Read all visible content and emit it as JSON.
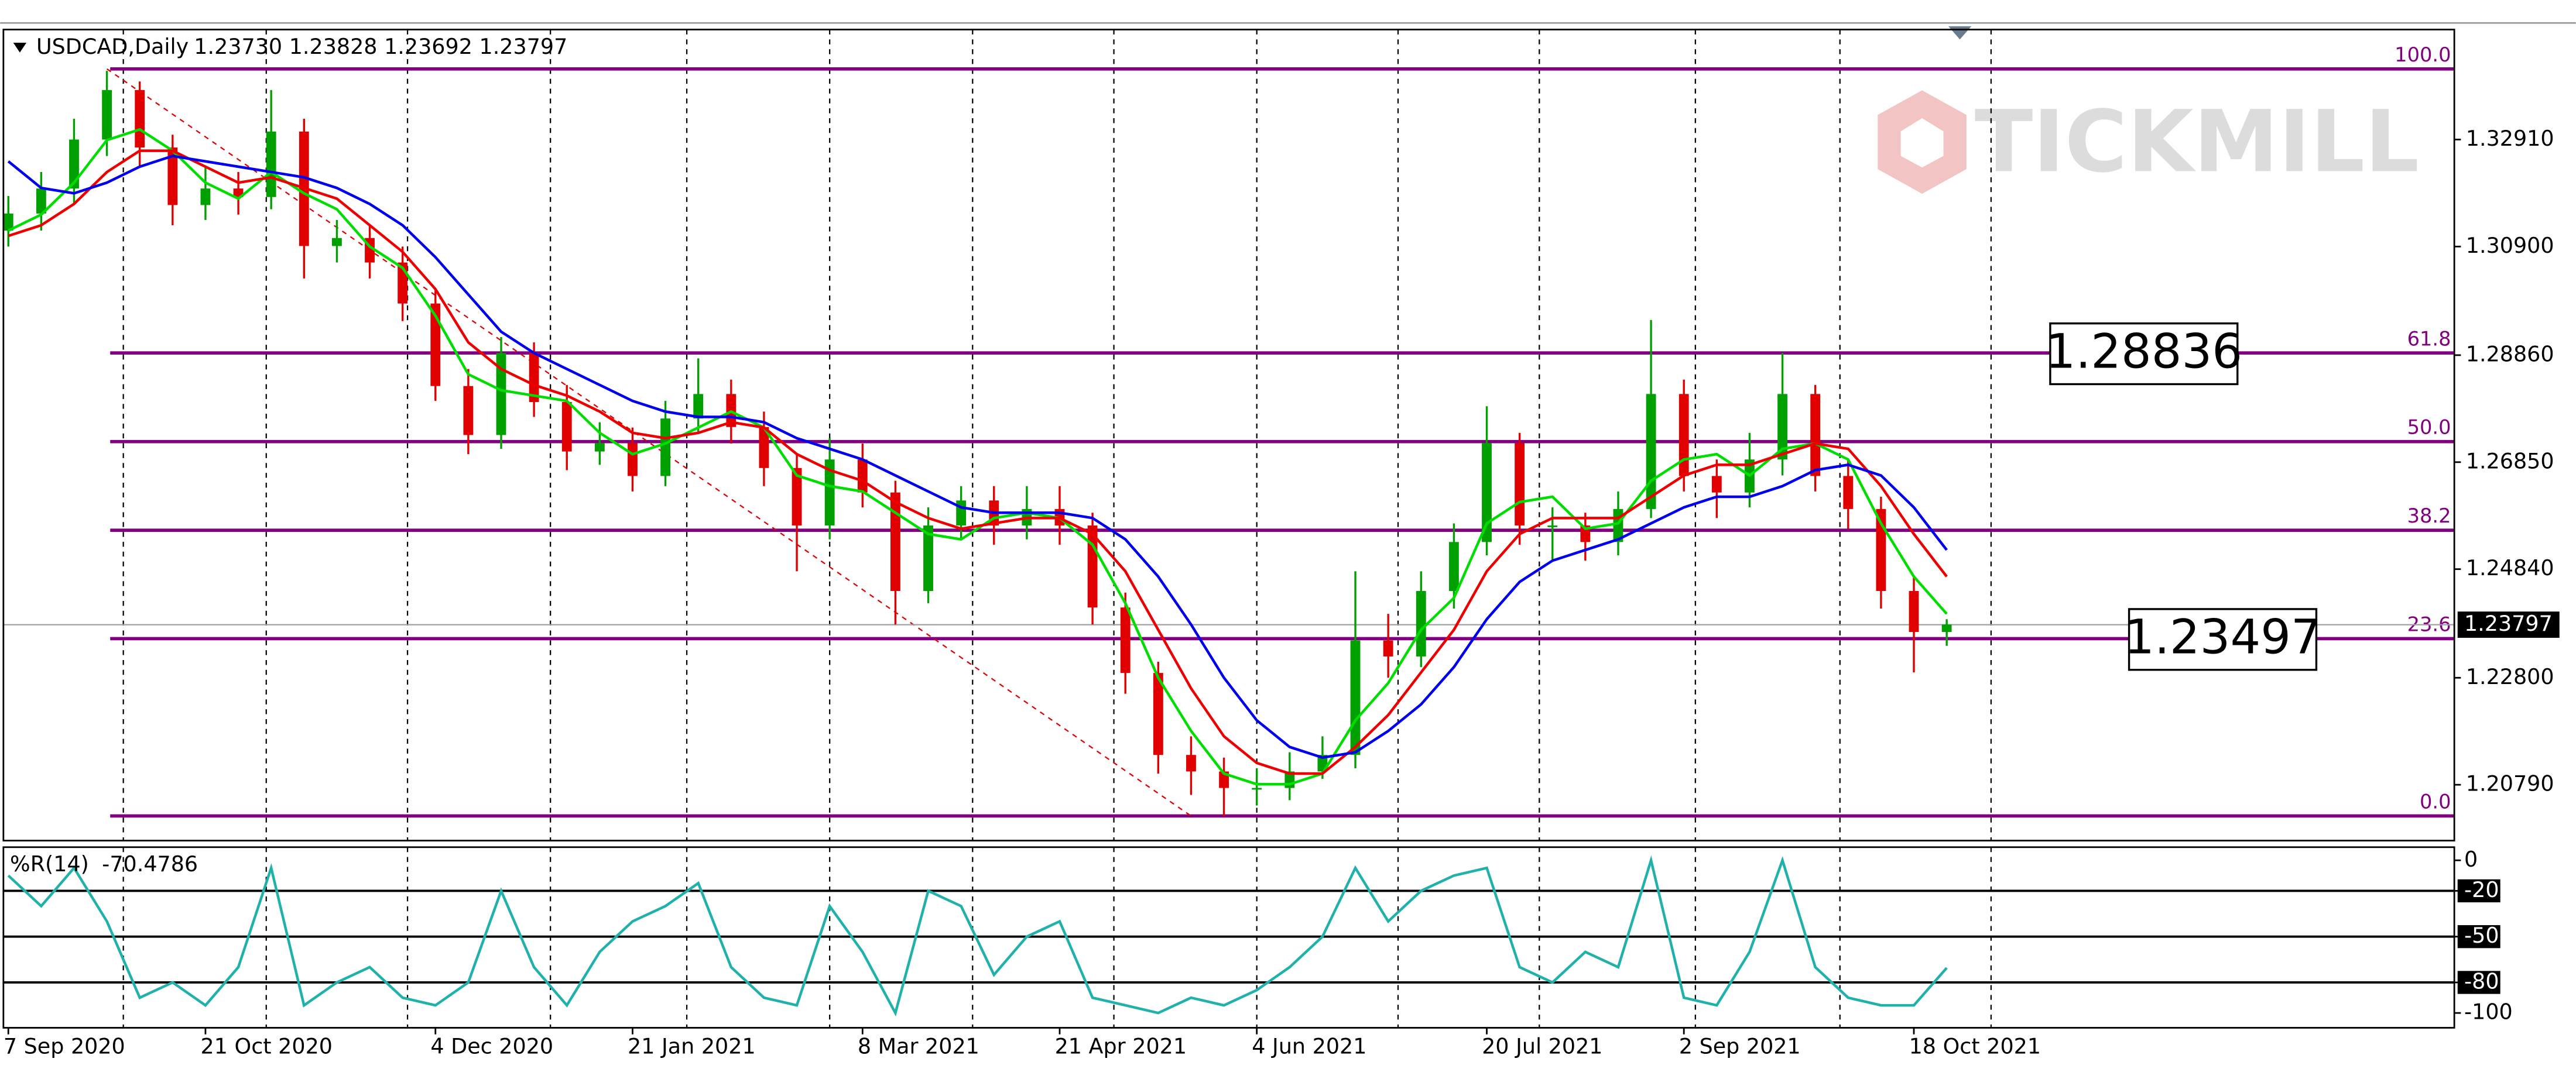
{
  "chart_data": [
    {
      "type": "candlestick",
      "title": "USDCAD,Daily",
      "subtitle": "1.23730 1.23828 1.23692 1.23797",
      "categories": [
        "7 Sep 2020",
        null,
        null,
        null,
        null,
        null,
        "21 Oct 2020",
        null,
        null,
        null,
        null,
        null,
        null,
        "4 Dec 2020",
        null,
        null,
        null,
        null,
        null,
        "21 Jan 2021",
        null,
        null,
        null,
        null,
        null,
        null,
        "8 Mar 2021",
        null,
        null,
        null,
        null,
        null,
        "21 Apr 2021",
        null,
        null,
        null,
        null,
        null,
        "4 Jun 2021",
        null,
        null,
        null,
        null,
        null,
        null,
        "20 Jul 2021",
        null,
        null,
        null,
        null,
        null,
        "2 Sep 2021",
        null,
        null,
        null,
        null,
        null,
        null,
        "18 Oct 2021",
        null
      ],
      "open": [
        1.312,
        1.3152,
        1.3199,
        1.3291,
        1.3384,
        1.3276,
        1.3168,
        1.3199,
        1.3183,
        1.3306,
        1.3091,
        1.3106,
        1.306,
        1.2983,
        1.2828,
        1.2736,
        1.289,
        1.2798,
        1.2705,
        1.2721,
        1.2659,
        1.2767,
        1.2813,
        1.2751,
        1.2674,
        1.2566,
        1.269,
        1.2628,
        1.2443,
        1.2566,
        1.2613,
        1.2566,
        1.2597,
        1.2566,
        1.2412,
        1.2289,
        1.2135,
        1.2104,
        1.2073,
        1.2073,
        1.2104,
        1.2135,
        1.235,
        1.232,
        1.2443,
        1.2535,
        1.2721,
        1.2566,
        1.2566,
        1.2535,
        1.2597,
        1.2813,
        1.2659,
        1.2628,
        1.269,
        1.2813,
        1.2659,
        1.2597,
        1.2443,
        1.2366
      ],
      "high": [
        1.3185,
        1.323,
        1.333,
        1.342,
        1.34,
        1.33,
        1.324,
        1.323,
        1.3384,
        1.333,
        1.314,
        1.313,
        1.309,
        1.301,
        1.286,
        1.292,
        1.291,
        1.283,
        1.276,
        1.275,
        1.28,
        1.288,
        1.284,
        1.278,
        1.27,
        1.273,
        1.272,
        1.265,
        1.26,
        1.264,
        1.264,
        1.264,
        1.264,
        1.259,
        1.244,
        1.231,
        1.217,
        1.213,
        1.211,
        1.214,
        1.217,
        1.248,
        1.24,
        1.248,
        1.257,
        1.279,
        1.274,
        1.26,
        1.259,
        1.263,
        1.2952,
        1.284,
        1.269,
        1.274,
        1.289,
        1.283,
        1.269,
        1.262,
        1.247,
        1.239
      ],
      "low": [
        1.309,
        1.312,
        1.317,
        1.326,
        1.324,
        1.313,
        1.314,
        1.315,
        1.316,
        1.303,
        1.306,
        1.303,
        1.295,
        1.28,
        1.27,
        1.271,
        1.277,
        1.267,
        1.268,
        1.263,
        1.264,
        1.274,
        1.272,
        1.264,
        1.248,
        1.254,
        1.26,
        1.238,
        1.242,
        1.254,
        1.253,
        1.254,
        1.253,
        1.238,
        1.225,
        1.21,
        1.206,
        1.202,
        1.204,
        1.205,
        1.209,
        1.211,
        1.228,
        1.23,
        1.241,
        1.251,
        1.253,
        1.25,
        1.25,
        1.251,
        1.258,
        1.263,
        1.258,
        1.26,
        1.266,
        1.263,
        1.256,
        1.241,
        1.229,
        1.234
      ],
      "close": [
        1.3152,
        1.3199,
        1.3291,
        1.3384,
        1.3276,
        1.3168,
        1.3199,
        1.3183,
        1.3306,
        1.3091,
        1.3106,
        1.306,
        1.2983,
        1.2828,
        1.2736,
        1.289,
        1.2798,
        1.2705,
        1.2721,
        1.2659,
        1.2767,
        1.2813,
        1.2751,
        1.2674,
        1.2566,
        1.269,
        1.2628,
        1.2443,
        1.2566,
        1.2613,
        1.2566,
        1.2597,
        1.2566,
        1.2412,
        1.2289,
        1.2135,
        1.2104,
        1.2073,
        1.2073,
        1.2104,
        1.2135,
        1.235,
        1.232,
        1.2443,
        1.2535,
        1.2721,
        1.2566,
        1.2566,
        1.2535,
        1.2597,
        1.2813,
        1.2659,
        1.2628,
        1.269,
        1.2813,
        1.2659,
        1.2597,
        1.2443,
        1.2366,
        1.238
      ],
      "up_color": "#00a000",
      "down_color": "#e00000",
      "lines": [
        {
          "color": "#00dd00",
          "values": [
            1.312,
            1.315,
            1.321,
            1.329,
            1.331,
            1.327,
            1.321,
            1.318,
            1.323,
            1.319,
            1.316,
            1.309,
            1.305,
            1.296,
            1.285,
            1.282,
            1.281,
            1.28,
            1.274,
            1.27,
            1.272,
            1.275,
            1.278,
            1.275,
            1.266,
            1.264,
            1.263,
            1.259,
            1.255,
            1.254,
            1.258,
            1.259,
            1.258,
            1.253,
            1.242,
            1.228,
            1.218,
            1.21,
            1.208,
            1.208,
            1.21,
            1.22,
            1.227,
            1.237,
            1.243,
            1.257,
            1.261,
            1.262,
            1.256,
            1.257,
            1.265,
            1.269,
            1.27,
            1.266,
            1.271,
            1.272,
            1.269,
            1.257,
            1.247,
            1.24
          ]
        },
        {
          "color": "#ee0000",
          "values": [
            1.311,
            1.313,
            1.317,
            1.323,
            1.327,
            1.327,
            1.324,
            1.321,
            1.322,
            1.32,
            1.318,
            1.313,
            1.308,
            1.301,
            1.291,
            1.286,
            1.283,
            1.281,
            1.278,
            1.274,
            1.273,
            1.274,
            1.276,
            1.275,
            1.27,
            1.267,
            1.265,
            1.261,
            1.258,
            1.256,
            1.257,
            1.258,
            1.258,
            1.255,
            1.248,
            1.237,
            1.226,
            1.217,
            1.212,
            1.21,
            1.21,
            1.215,
            1.221,
            1.229,
            1.237,
            1.248,
            1.255,
            1.258,
            1.258,
            1.258,
            1.262,
            1.266,
            1.268,
            1.268,
            1.27,
            1.272,
            1.271,
            1.264,
            1.255,
            1.247
          ]
        },
        {
          "color": "#0000ee",
          "values": [
            1.325,
            1.32,
            1.319,
            1.321,
            1.324,
            1.326,
            1.325,
            1.324,
            1.323,
            1.322,
            1.32,
            1.317,
            1.313,
            1.307,
            1.3,
            1.293,
            1.289,
            1.286,
            1.283,
            1.28,
            1.278,
            1.277,
            1.277,
            1.276,
            1.273,
            1.271,
            1.269,
            1.266,
            1.263,
            1.26,
            1.259,
            1.259,
            1.259,
            1.258,
            1.254,
            1.247,
            1.238,
            1.228,
            1.22,
            1.215,
            1.213,
            1.214,
            1.218,
            1.223,
            1.23,
            1.239,
            1.246,
            1.25,
            1.252,
            1.254,
            1.257,
            1.26,
            1.262,
            1.262,
            1.264,
            1.267,
            1.268,
            1.266,
            1.26,
            1.252
          ]
        }
      ],
      "ylim": [
        1.19741,
        1.34976
      ],
      "yticks": [
        {
          "value": 1.3291,
          "label": "1.32910"
        },
        {
          "value": 1.309,
          "label": "1.30900"
        },
        {
          "value": 1.2886,
          "label": "1.28860"
        },
        {
          "value": 1.2685,
          "label": "1.26850"
        },
        {
          "value": 1.2484,
          "label": "1.24840"
        },
        {
          "value": 1.228,
          "label": "1.22800"
        },
        {
          "value": 1.2079,
          "label": "1.20790"
        }
      ],
      "fib_color": "#800080",
      "fib_levels": [
        {
          "value": 1.34236,
          "label": "100.0"
        },
        {
          "value": 1.28901,
          "label": "61.8"
        },
        {
          "value": 1.27236,
          "label": "50.0"
        },
        {
          "value": 1.25571,
          "label": "38.2"
        },
        {
          "value": 1.23535,
          "label": "23.6"
        },
        {
          "value": 1.20204,
          "label": "0.0"
        }
      ],
      "annotations": [
        "1.28836",
        "1.23497"
      ],
      "last_price": {
        "value": 1.23797,
        "label": "1.23797"
      },
      "watermark": "TICKMILL"
    },
    {
      "type": "line",
      "title": "%R(14)",
      "color": "#20b2aa",
      "values": [
        -10,
        -30,
        -5,
        -40,
        -90,
        -80,
        -95,
        -70,
        -5,
        -95,
        -80,
        -70,
        -90,
        -95,
        -80,
        -20,
        -70,
        -95,
        -60,
        -40,
        -30,
        -15,
        -70,
        -90,
        -95,
        -30,
        -60,
        -100,
        -20,
        -30,
        -75,
        -50,
        -40,
        -90,
        -95,
        -100,
        -90,
        -95,
        -85,
        -70,
        -50,
        -5,
        -40,
        -20,
        -10,
        -5,
        -70,
        -80,
        -60,
        -70,
        0,
        -90,
        -95,
        -60,
        0,
        -70,
        -90,
        -95,
        -95,
        -70.4786
      ],
      "ylim": [
        -109.7,
        8.6
      ],
      "yticks": [
        0,
        -20,
        -50,
        -80,
        -100
      ],
      "levels": [
        -20,
        -50,
        -80
      ]
    }
  ]
}
